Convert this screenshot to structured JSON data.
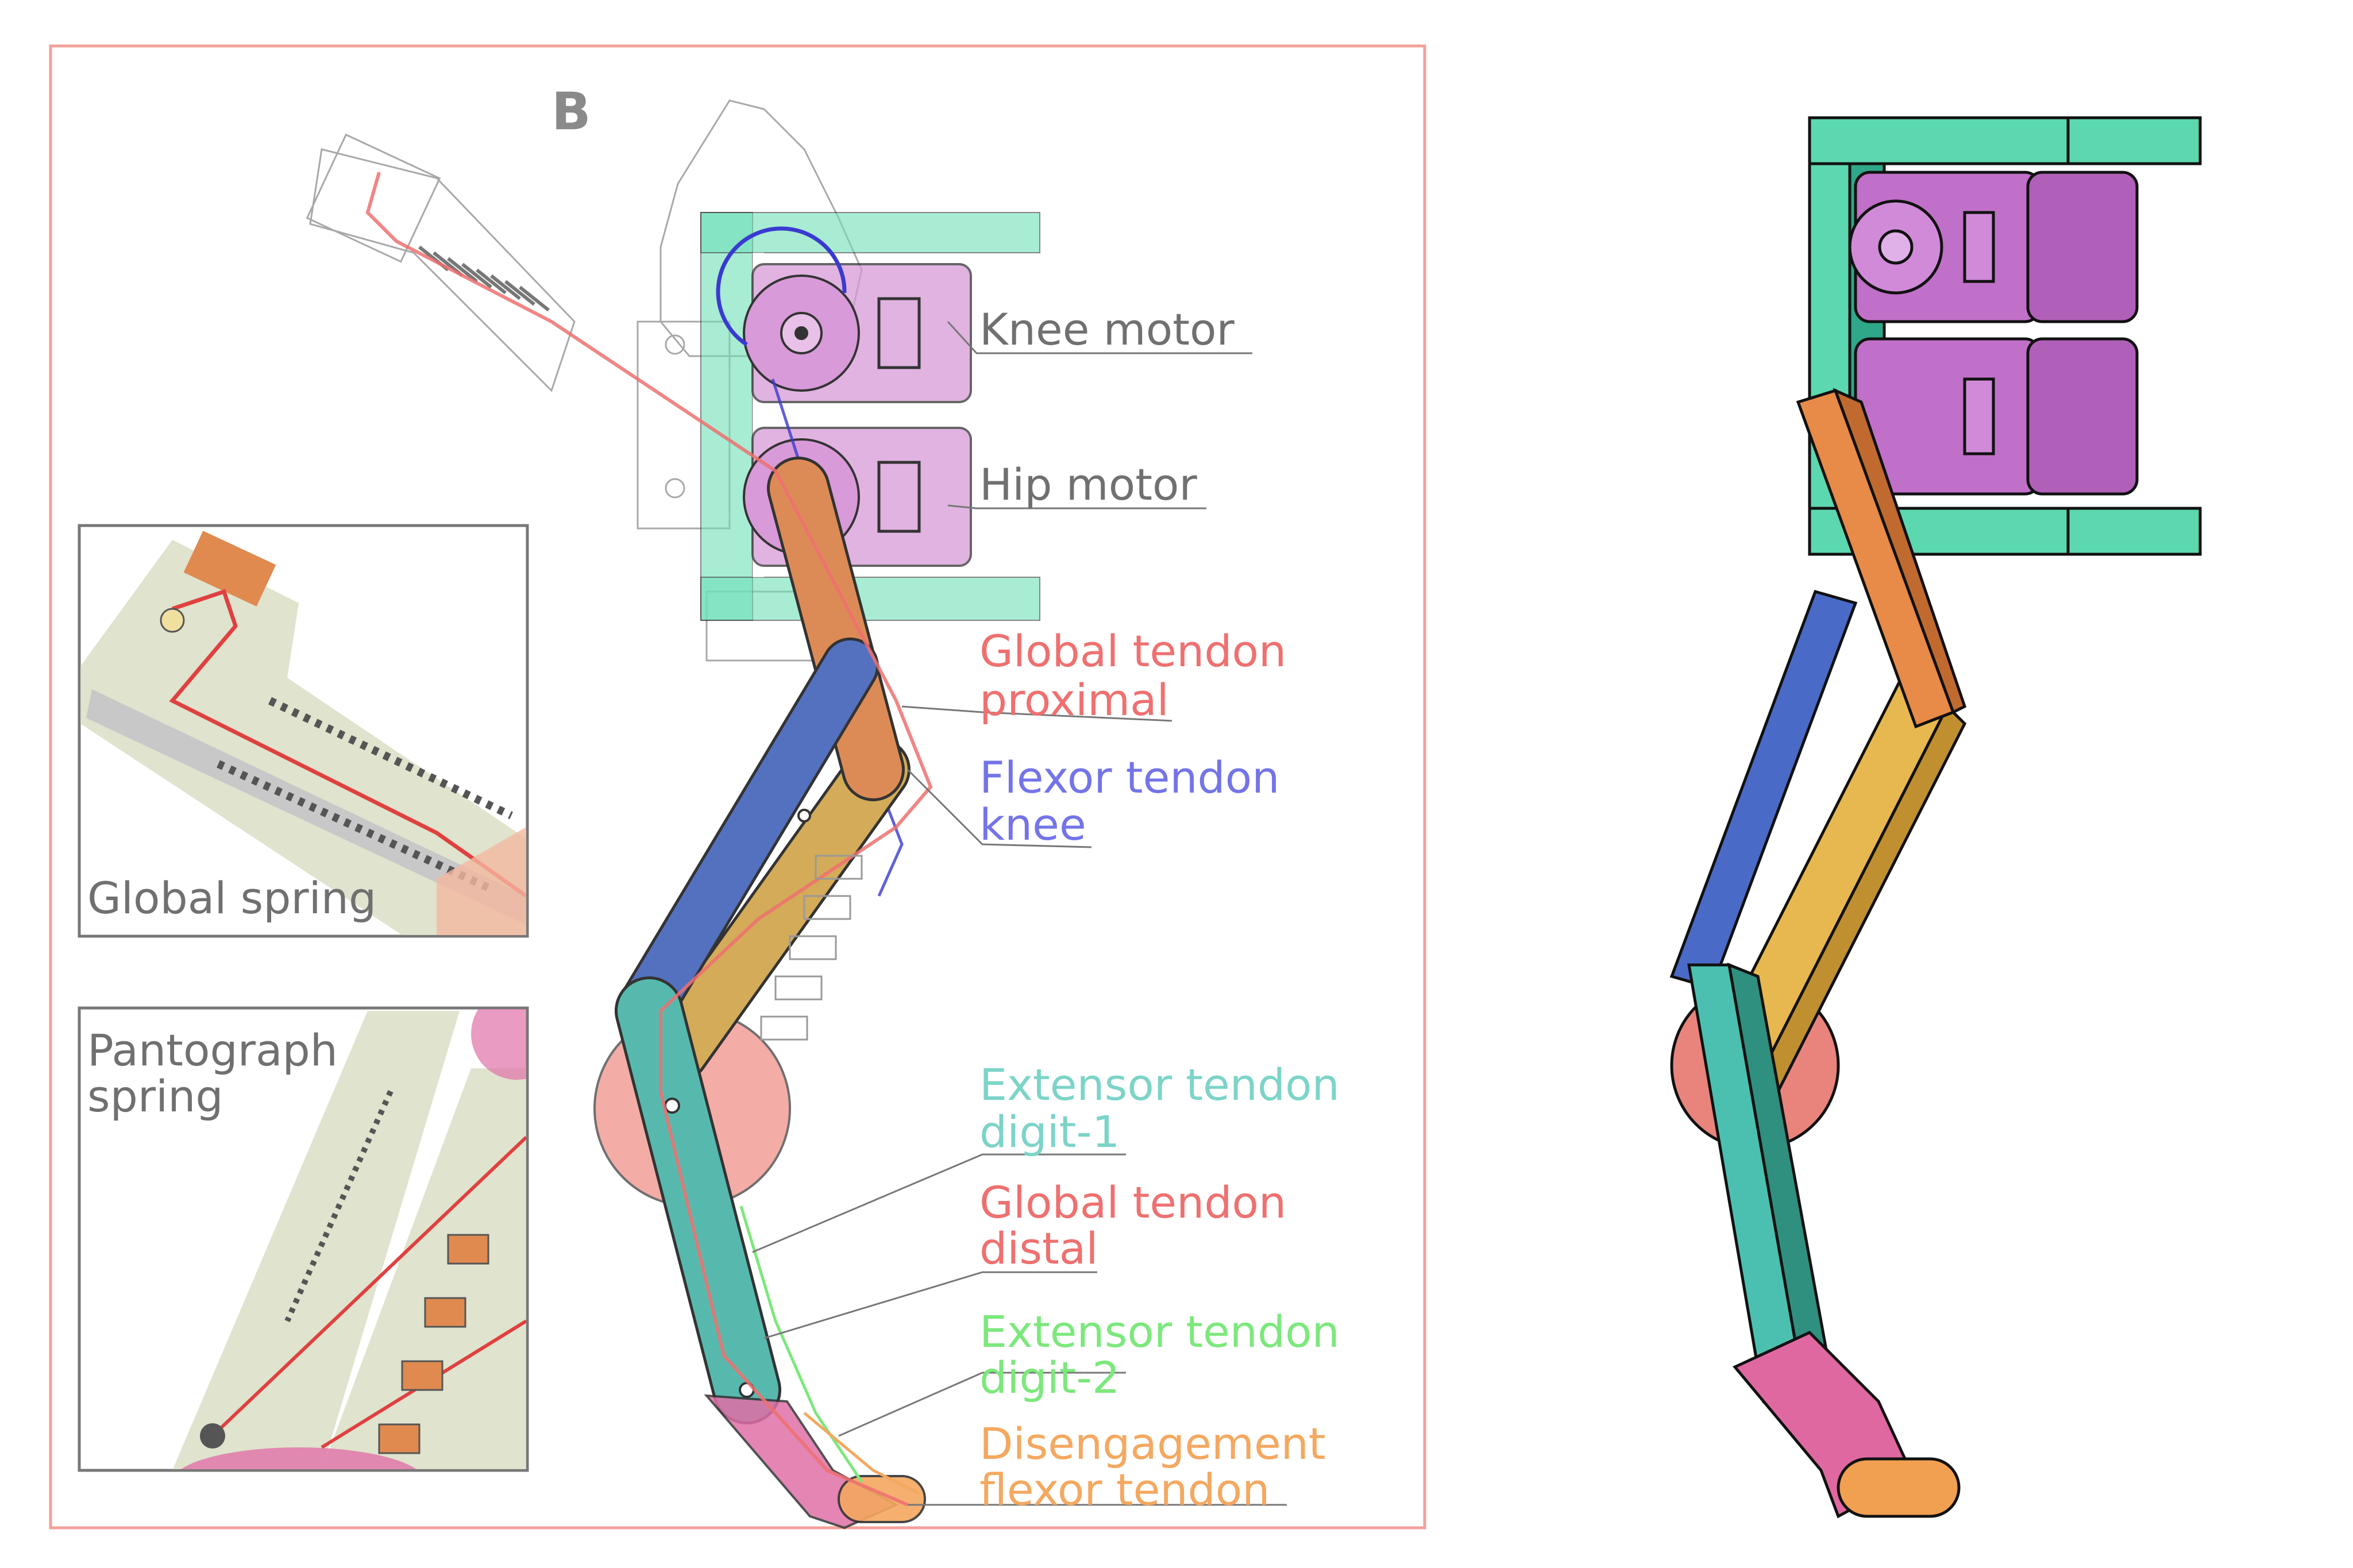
{
  "panel_letter": "B",
  "labels": {
    "knee_motor": "Knee motor",
    "hip_motor": "Hip motor",
    "global_tendon_proximal_1": "Global tendon",
    "global_tendon_proximal_2": "proximal",
    "flexor_tendon_knee_1": "Flexor tendon",
    "flexor_tendon_knee_2": "knee",
    "extensor_digit1_1": "Extensor tendon",
    "extensor_digit1_2": "digit-1",
    "global_tendon_distal_1": "Global tendon",
    "global_tendon_distal_2": "distal",
    "extensor_digit2_1": "Extensor tendon",
    "extensor_digit2_2": "digit-2",
    "disengagement_1": "Disengagement",
    "disengagement_2": "flexor tendon"
  },
  "insets": {
    "global_spring": "Global spring",
    "pantograph_spring_1": "Pantograph",
    "pantograph_spring_2": "spring"
  },
  "colors": {
    "frame_border": "#f2a09a",
    "bracket": "#6fe0b8",
    "motor": "#d89ad8",
    "orange_link": "#f0955a",
    "blue_link": "#5878d0",
    "yellow_link": "#f0c060",
    "teal_link": "#5cc8bc",
    "pink_link": "#e070a8",
    "wheel": "#f08a82",
    "global_tendon": "#ef7070",
    "flexor_tendon": "#7474e8",
    "extensor_digit1": "#7cd4c8",
    "extensor_digit2": "#7ce87c",
    "disengagement": "#f4a860",
    "gray_text": "#707070"
  }
}
